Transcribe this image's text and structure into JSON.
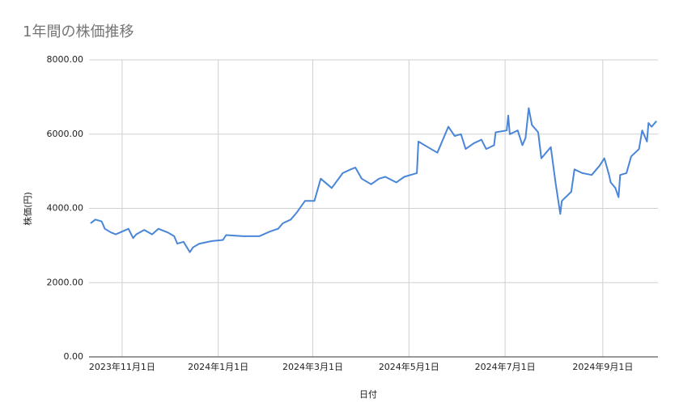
{
  "chart_data": {
    "type": "line",
    "title": "1年間の株価推移",
    "x_label": "日付",
    "y_label": "株価(円)",
    "x": [
      "2023-10-12",
      "2023-10-15",
      "2023-10-19",
      "2023-10-21",
      "2023-10-25",
      "2023-10-28",
      "2023-11-05",
      "2023-11-08",
      "2023-11-10",
      "2023-11-15",
      "2023-11-20",
      "2023-11-24",
      "2023-11-30",
      "2023-12-04",
      "2023-12-06",
      "2023-12-10",
      "2023-12-14",
      "2023-12-16",
      "2023-12-20",
      "2023-12-28",
      "2024-01-04",
      "2024-01-06",
      "2024-01-17",
      "2024-01-27",
      "2024-02-03",
      "2024-02-08",
      "2024-02-11",
      "2024-02-16",
      "2024-02-20",
      "2024-02-25",
      "2024-03-02",
      "2024-03-06",
      "2024-03-13",
      "2024-03-20",
      "2024-03-25",
      "2024-03-28",
      "2024-04-01",
      "2024-04-07",
      "2024-04-12",
      "2024-04-16",
      "2024-04-23",
      "2024-04-28",
      "2024-05-06",
      "2024-05-07",
      "2024-05-13",
      "2024-05-19",
      "2024-05-26",
      "2024-05-30",
      "2024-06-03",
      "2024-06-06",
      "2024-06-11",
      "2024-06-16",
      "2024-06-19",
      "2024-06-24",
      "2024-06-25",
      "2024-07-02",
      "2024-07-03",
      "2024-07-04",
      "2024-07-09",
      "2024-07-12",
      "2024-07-14",
      "2024-07-16",
      "2024-07-18",
      "2024-07-22",
      "2024-07-24",
      "2024-07-30",
      "2024-08-02",
      "2024-08-05",
      "2024-08-06",
      "2024-08-12",
      "2024-08-14",
      "2024-08-19",
      "2024-08-25",
      "2024-08-30",
      "2024-09-02",
      "2024-09-05",
      "2024-09-06",
      "2024-09-09",
      "2024-09-11",
      "2024-09-12",
      "2024-09-16",
      "2024-09-19",
      "2024-09-24",
      "2024-09-26",
      "2024-09-29",
      "2024-09-30",
      "2024-10-02",
      "2024-10-05"
    ],
    "series": [
      {
        "name": "株価",
        "color": "#4a86d8",
        "values": [
          3600,
          3700,
          3650,
          3450,
          3350,
          3300,
          3450,
          3200,
          3300,
          3420,
          3300,
          3450,
          3350,
          3250,
          3050,
          3100,
          2820,
          2950,
          3050,
          3120,
          3150,
          3280,
          3250,
          3250,
          3380,
          3450,
          3600,
          3700,
          3900,
          4200,
          4200,
          4800,
          4550,
          4950,
          5050,
          5100,
          4800,
          4650,
          4800,
          4850,
          4700,
          4850,
          4950,
          5800,
          5650,
          5500,
          6200,
          5950,
          6000,
          5600,
          5750,
          5850,
          5600,
          5700,
          6050,
          6100,
          6500,
          6000,
          6100,
          5700,
          5900,
          6700,
          6250,
          6050,
          5350,
          5650,
          4700,
          3850,
          4200,
          4450,
          5050,
          4950,
          4900,
          5150,
          5350,
          4900,
          4700,
          4550,
          4300,
          4900,
          4950,
          5400,
          5600,
          6100,
          5800,
          6300,
          6200,
          6350
        ]
      }
    ],
    "xlim": [
      "2023-10-11",
      "2024-10-06"
    ],
    "xticks": [
      {
        "value": "2023-11-01",
        "label": "2023年11月1日"
      },
      {
        "value": "2024-01-01",
        "label": "2024年1月1日"
      },
      {
        "value": "2024-03-01",
        "label": "2024年3月1日"
      },
      {
        "value": "2024-05-01",
        "label": "2024年5月1日"
      },
      {
        "value": "2024-07-01",
        "label": "2024年7月1日"
      },
      {
        "value": "2024-09-01",
        "label": "2024年9月1日"
      }
    ],
    "ylim": [
      0,
      8000
    ],
    "yticks": [
      {
        "value": 0,
        "label": "0.00"
      },
      {
        "value": 2000,
        "label": "2000.00"
      },
      {
        "value": 4000,
        "label": "4000.00"
      },
      {
        "value": 6000,
        "label": "6000.00"
      },
      {
        "value": 8000,
        "label": "8000.00"
      }
    ],
    "grid": true
  }
}
